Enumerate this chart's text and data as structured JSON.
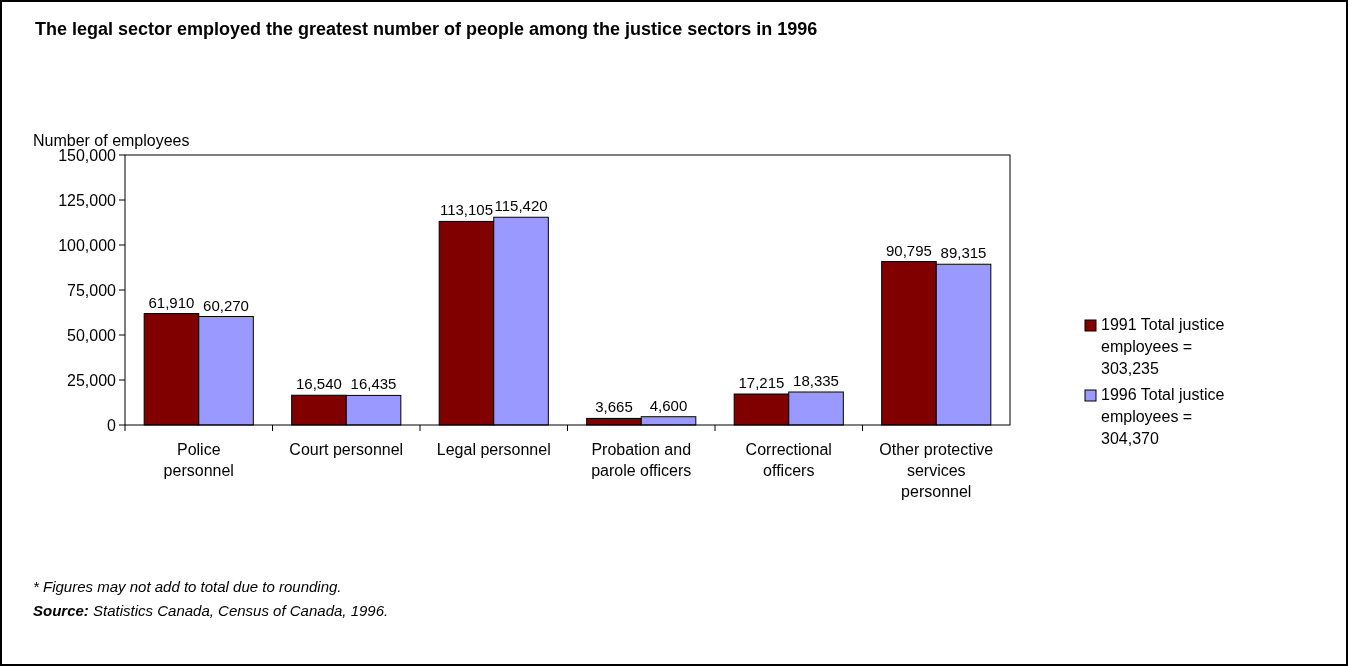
{
  "chart_data": {
    "type": "bar",
    "title": "The legal sector employed the greatest number of people among the justice sectors in 1996",
    "ylabel": "Number of employees",
    "categories": [
      "Police personnel",
      "Court personnel",
      "Legal personnel",
      "Probation and parole officers",
      "Correctional officers",
      "Other protective services personnel"
    ],
    "series": [
      {
        "name": "1991 Total justice employees = 303,235",
        "color": "#800000",
        "values": [
          61910,
          16540,
          113105,
          3665,
          17215,
          90795
        ],
        "value_labels": [
          "61,910",
          "16,540",
          "113,105",
          "3,665",
          "17,215",
          "90,795"
        ]
      },
      {
        "name": "1996 Total justice employees = 304,370",
        "color": "#9999ff",
        "values": [
          60270,
          16435,
          115420,
          4600,
          18335,
          89315
        ],
        "value_labels": [
          "60,270",
          "16,435",
          "115,420",
          "4,600",
          "18,335",
          "89,315"
        ]
      }
    ],
    "ylim": [
      0,
      150000
    ],
    "yticks": [
      {
        "value": 0,
        "label": "0"
      },
      {
        "value": 25000,
        "label": "25,000"
      },
      {
        "value": 50000,
        "label": "50,000"
      },
      {
        "value": 75000,
        "label": "75,000"
      },
      {
        "value": 100000,
        "label": "100,000"
      },
      {
        "value": 125000,
        "label": "125,000"
      },
      {
        "value": 150000,
        "label": "150,000"
      }
    ],
    "legend": "right",
    "grid": false,
    "annotations": [
      "* Figures may not add to total due to rounding.",
      "Source: Statistics Canada, Census of Canada, 1996."
    ]
  }
}
